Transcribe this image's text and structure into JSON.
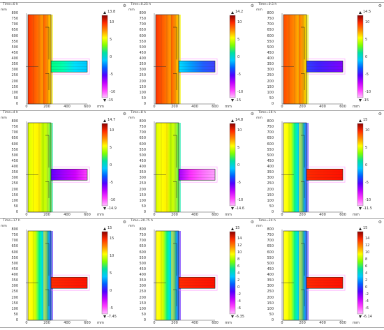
{
  "axis": {
    "y_ticks": [
      "800",
      "750",
      "700",
      "650",
      "600",
      "550",
      "500",
      "450",
      "400",
      "350",
      "300",
      "250",
      "200",
      "150",
      "100",
      "50",
      "0"
    ],
    "x_ticks": [
      "0",
      "200",
      "400",
      "600"
    ],
    "x_unit": "mm",
    "y_unit": "mm"
  },
  "panels": [
    {
      "time": "Time=0 h",
      "max_label": "13.8",
      "min_label": "-15",
      "cb_ticks": [
        "10",
        "5",
        "0",
        "-5",
        "-10"
      ],
      "tee_state": "cold"
    },
    {
      "time": "Time=0.25 h",
      "max_label": "14.2",
      "min_label": "-15",
      "cb_ticks": [
        "10",
        "5",
        "0",
        "-5",
        "-10"
      ],
      "tee_state": "cold2"
    },
    {
      "time": "Time=0.5 h",
      "max_label": "14.5",
      "min_label": "-15",
      "cb_ticks": [
        "10",
        "5",
        "0",
        "-5",
        "-10"
      ],
      "tee_state": "cool"
    },
    {
      "time": "Time=4 h",
      "max_label": "14.7",
      "min_label": "-14.9",
      "cb_ticks": [
        "10",
        "5",
        "0",
        "-5",
        "-10"
      ],
      "tee_state": "warm1"
    },
    {
      "time": "Time=8 h",
      "max_label": "14.8",
      "min_label": "-14.6",
      "cb_ticks": [
        "10",
        "5",
        "0",
        "-5",
        "-10"
      ],
      "tee_state": "warm2"
    },
    {
      "time": "Time=16 h",
      "max_label": "15",
      "min_label": "-11.5",
      "cb_ticks": [
        "10",
        "5",
        "0",
        "-5",
        "-10"
      ],
      "tee_state": "hot"
    },
    {
      "time": "Time=17 h",
      "max_label": "15",
      "min_label": "-7.45",
      "cb_ticks": [
        "15",
        "10",
        "5",
        "0",
        "-5"
      ],
      "tee_state": "hot"
    },
    {
      "time": "Time=20.75 h",
      "max_label": "15",
      "min_label": "-6.35",
      "cb_ticks": [
        "14",
        "12",
        "10",
        "8",
        "6",
        "4",
        "2",
        "0",
        "-2",
        "-4",
        "-6"
      ],
      "tee_state": "hot"
    },
    {
      "time": "Time=24 h",
      "max_label": "15",
      "min_label": "-6.14",
      "cb_ticks": [
        "14",
        "12",
        "10",
        "8",
        "6",
        "4",
        "2",
        "0",
        "-2",
        "-4",
        "-6"
      ],
      "tee_state": "hot"
    }
  ],
  "colors": {
    "colorbar": [
      "#8b0000",
      "#ff2a00",
      "#ff8c00",
      "#ffff00",
      "#7fff00",
      "#00e0a0",
      "#00c8ff",
      "#0060ff",
      "#5000ff",
      "#c000ff",
      "#ff40ff",
      "#ffc0ff"
    ]
  }
}
